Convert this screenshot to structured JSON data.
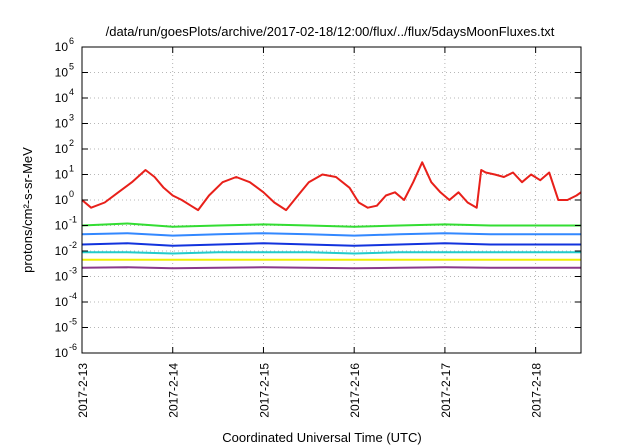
{
  "chart_data": {
    "type": "line",
    "title": "/data/run/goesPlots/archive/2017-02-18/12:00/flux/../flux/5daysMoonFluxes.txt",
    "xlabel": "Coordinated Universal Time (UTC)",
    "ylabel": "protons/cm²-s-sr-MeV",
    "yscale": "log",
    "ylim": [
      1e-06,
      1000000.0
    ],
    "xlim": [
      0,
      5.5
    ],
    "x_unit": "days since 2017-2-13 00:00 UTC (tick positions)",
    "xticks": [
      {
        "label": "2017-2-13",
        "x": 0
      },
      {
        "label": "2017-2-14",
        "x": 1
      },
      {
        "label": "2017-2-15",
        "x": 2
      },
      {
        "label": "2017-2-16",
        "x": 3
      },
      {
        "label": "2017-2-17",
        "x": 4
      },
      {
        "label": "2017-2-18",
        "x": 5
      }
    ],
    "yticks": [
      {
        "base": "10",
        "exp": "-6",
        "v": -6
      },
      {
        "base": "10",
        "exp": "-5",
        "v": -5
      },
      {
        "base": "10",
        "exp": "-4",
        "v": -4
      },
      {
        "base": "10",
        "exp": "-3",
        "v": -3
      },
      {
        "base": "10",
        "exp": "-2",
        "v": -2
      },
      {
        "base": "10",
        "exp": "-1",
        "v": -1
      },
      {
        "base": "10",
        "exp": "0",
        "v": 0
      },
      {
        "base": "10",
        "exp": "1",
        "v": 1
      },
      {
        "base": "10",
        "exp": "2",
        "v": 2
      },
      {
        "base": "10",
        "exp": "3",
        "v": 3
      },
      {
        "base": "10",
        "exp": "4",
        "v": 4
      },
      {
        "base": "10",
        "exp": "5",
        "v": 5
      },
      {
        "base": "10",
        "exp": "6",
        "v": 6
      }
    ],
    "grid": true,
    "series": [
      {
        "color": "#e8201a",
        "x": [
          0.0,
          0.1,
          0.25,
          0.4,
          0.55,
          0.7,
          0.8,
          0.9,
          1.0,
          1.1,
          1.2,
          1.28,
          1.4,
          1.55,
          1.7,
          1.85,
          2.0,
          2.12,
          2.25,
          2.38,
          2.5,
          2.65,
          2.8,
          2.95,
          3.05,
          3.15,
          3.25,
          3.35,
          3.45,
          3.55,
          3.65,
          3.75,
          3.85,
          3.95,
          4.05,
          4.15,
          4.25,
          4.35,
          4.4,
          4.45,
          4.55,
          4.65,
          4.75,
          4.85,
          4.95,
          5.05,
          5.15,
          5.25,
          5.35,
          5.45,
          5.5
        ],
        "y": [
          1.0,
          0.5,
          0.8,
          2.0,
          5.0,
          15.0,
          8.0,
          3.0,
          1.5,
          1.0,
          0.6,
          0.4,
          1.5,
          5.0,
          8.0,
          5.0,
          2.0,
          0.8,
          0.4,
          1.5,
          5.0,
          10.0,
          8.0,
          3.0,
          0.8,
          0.5,
          0.6,
          1.5,
          2.0,
          1.0,
          5.0,
          30.0,
          5.0,
          2.0,
          1.0,
          2.0,
          0.8,
          0.5,
          15.0,
          12.0,
          10.0,
          8.0,
          12.0,
          5.0,
          10.0,
          6.0,
          12.0,
          1.0,
          1.0,
          1.5,
          2.0
        ]
      },
      {
        "color": "#33dd33",
        "x": [
          0.0,
          0.5,
          1.0,
          1.5,
          2.0,
          2.5,
          3.0,
          3.5,
          4.0,
          4.5,
          5.0,
          5.5
        ],
        "y": [
          0.1,
          0.12,
          0.09,
          0.1,
          0.11,
          0.1,
          0.09,
          0.1,
          0.11,
          0.1,
          0.1,
          0.1
        ]
      },
      {
        "color": "#3388ff",
        "x": [
          0.0,
          0.5,
          1.0,
          1.5,
          2.0,
          2.5,
          3.0,
          3.5,
          4.0,
          4.5,
          5.0,
          5.5
        ],
        "y": [
          0.045,
          0.05,
          0.04,
          0.045,
          0.05,
          0.045,
          0.04,
          0.045,
          0.05,
          0.045,
          0.045,
          0.045
        ]
      },
      {
        "color": "#1133dd",
        "x": [
          0.0,
          0.5,
          1.0,
          1.5,
          2.0,
          2.5,
          3.0,
          3.5,
          4.0,
          4.5,
          5.0,
          5.5
        ],
        "y": [
          0.018,
          0.02,
          0.016,
          0.018,
          0.02,
          0.018,
          0.016,
          0.018,
          0.02,
          0.018,
          0.018,
          0.018
        ]
      },
      {
        "color": "#22cccc",
        "x": [
          0.0,
          0.5,
          1.0,
          1.5,
          2.0,
          2.5,
          3.0,
          3.5,
          4.0,
          4.5,
          5.0,
          5.5
        ],
        "y": [
          0.009,
          0.009,
          0.008,
          0.009,
          0.009,
          0.009,
          0.008,
          0.009,
          0.009,
          0.009,
          0.009,
          0.009
        ]
      },
      {
        "color": "#eeee00",
        "x": [
          0.0,
          0.5,
          1.0,
          1.5,
          2.0,
          2.5,
          3.0,
          3.5,
          4.0,
          4.5,
          5.0,
          5.5
        ],
        "y": [
          0.0045,
          0.0045,
          0.0045,
          0.0045,
          0.0045,
          0.0045,
          0.0045,
          0.0045,
          0.0045,
          0.0045,
          0.0045,
          0.0045
        ]
      },
      {
        "color": "#8b3a8b",
        "x": [
          0.0,
          0.5,
          1.0,
          1.5,
          2.0,
          2.5,
          3.0,
          3.5,
          4.0,
          4.5,
          5.0,
          5.5
        ],
        "y": [
          0.0022,
          0.0023,
          0.0021,
          0.0022,
          0.0023,
          0.0022,
          0.0021,
          0.0022,
          0.0023,
          0.0022,
          0.0022,
          0.0022
        ]
      }
    ]
  }
}
